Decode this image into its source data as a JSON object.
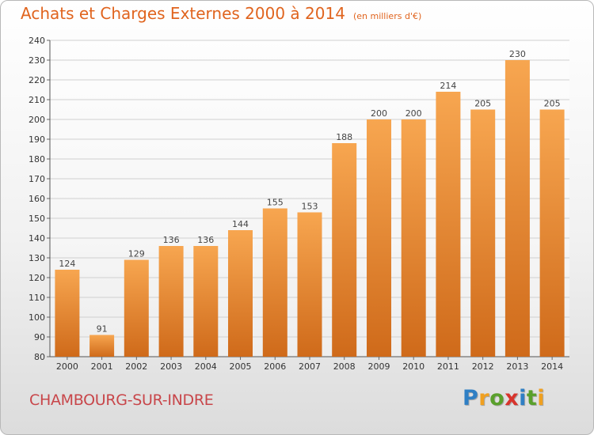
{
  "header": {
    "title": "Achats et Charges Externes 2000 à 2014",
    "subtitle": "(en milliers d'€)"
  },
  "footer": {
    "commune": "CHAMBOURG-SUR-INDRE",
    "logo": [
      "P",
      "r",
      "o",
      "x",
      "i",
      "t",
      "i"
    ],
    "logo_colors": [
      "#2f7fc4",
      "#f0a020",
      "#5aa02c",
      "#d8342c",
      "#2f7fc4",
      "#5aa02c",
      "#f0a020"
    ]
  },
  "chart_data": {
    "type": "bar",
    "categories": [
      "2000",
      "2001",
      "2002",
      "2003",
      "2004",
      "2005",
      "2006",
      "2007",
      "2008",
      "2009",
      "2010",
      "2011",
      "2012",
      "2013",
      "2014"
    ],
    "values": [
      124,
      91,
      129,
      136,
      136,
      144,
      155,
      153,
      188,
      200,
      200,
      214,
      205,
      230,
      205
    ],
    "ylim": [
      80,
      240
    ],
    "yticks": [
      80,
      90,
      100,
      110,
      120,
      130,
      140,
      150,
      160,
      170,
      180,
      190,
      200,
      210,
      220,
      230,
      240
    ],
    "grid": true,
    "bar_color_top": "#f7a650",
    "bar_color_bottom": "#cf6a1a"
  }
}
